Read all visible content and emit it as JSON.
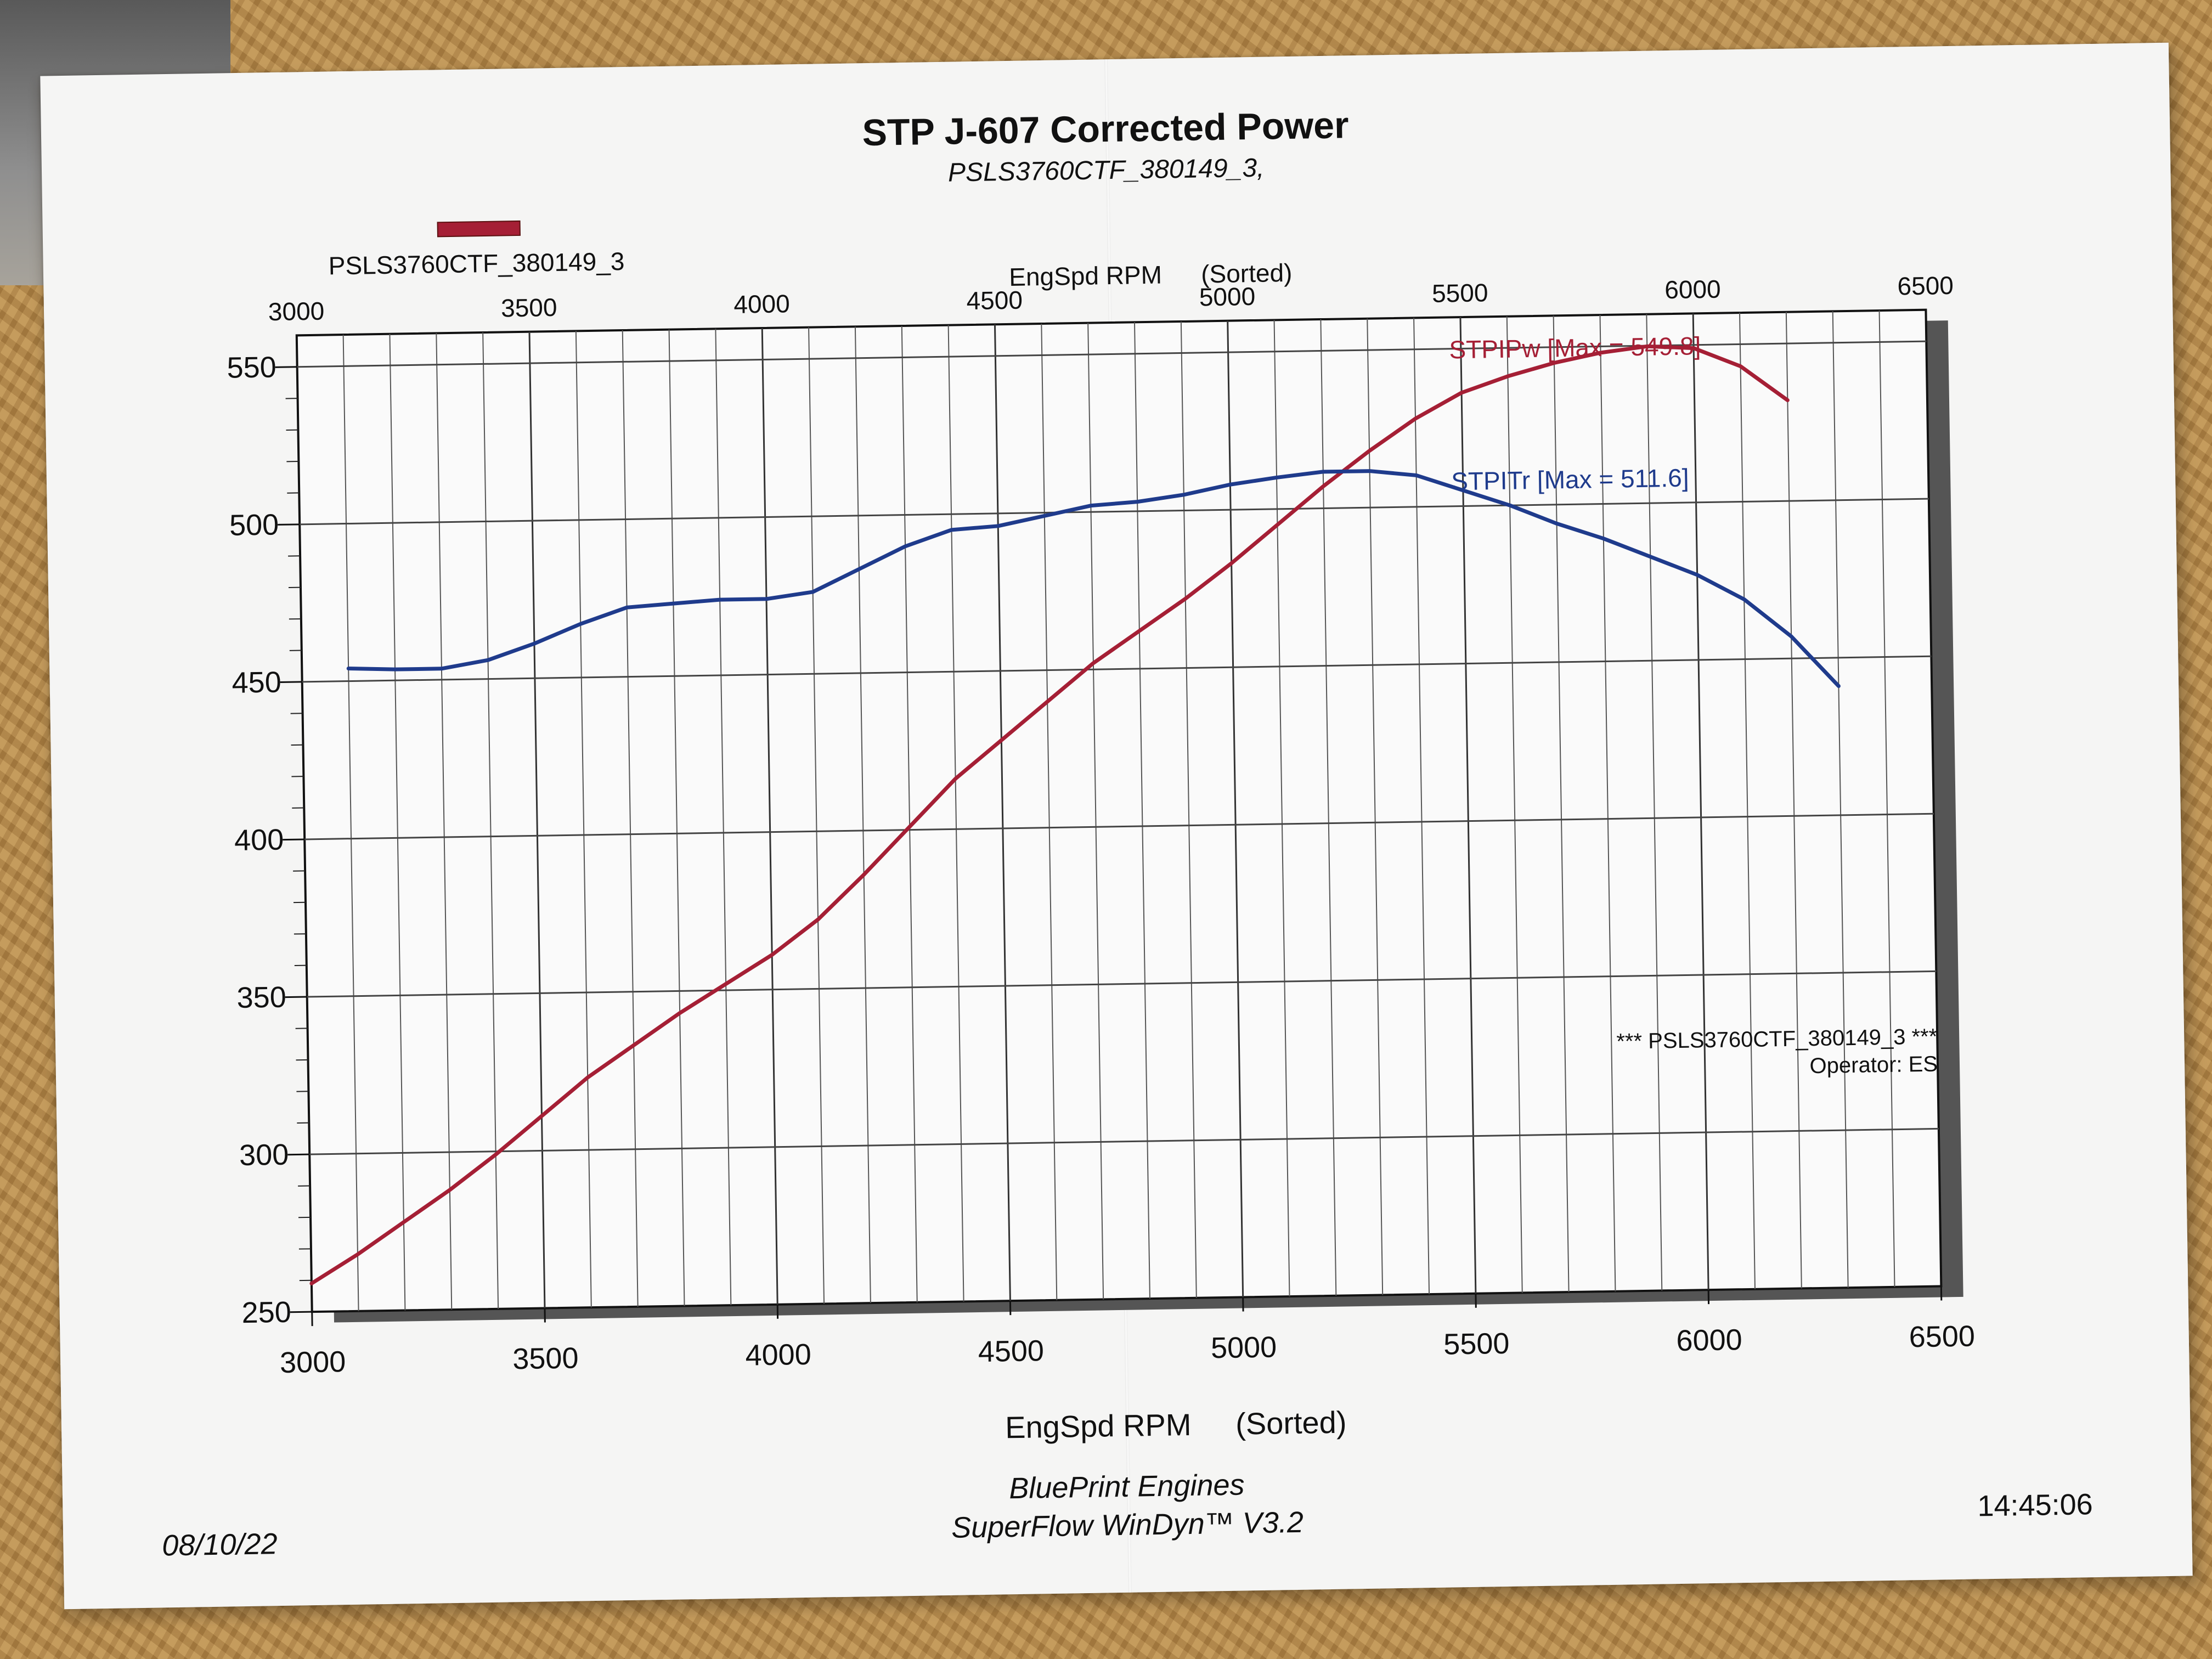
{
  "document": {
    "title": "STP J-607 Corrected Power",
    "subtitle": "PSLS3760CTF_380149_3,",
    "legend_label": "PSLS3760CTF_380149_3",
    "date": "08/10/22",
    "time": "14:45:06",
    "footer_line1": "BluePrint Engines",
    "footer_line2": "SuperFlow WinDyn™ V3.2",
    "note_line1": "*** PSLS3760CTF_380149_3 ***",
    "note_line2": "Operator: ES"
  },
  "chart_data": {
    "type": "line",
    "title": "STP J-607 Corrected Power",
    "subtitle": "PSLS3760CTF_380149_3,",
    "xlabel_main": "EngSpd RPM",
    "xlabel_suffix": "(Sorted)",
    "xlim": [
      3000,
      6500
    ],
    "ylim": [
      250,
      560
    ],
    "x_ticks": [
      3000,
      3500,
      4000,
      4500,
      5000,
      5500,
      6000,
      6500
    ],
    "y_ticks": [
      250,
      300,
      350,
      400,
      450,
      500,
      550
    ],
    "grid": true,
    "legend": "top-left",
    "series": [
      {
        "name": "STPIPw",
        "label": "STPIPw [Max = 549.8]",
        "color": "#a51f35",
        "x": [
          3000,
          3100,
          3200,
          3300,
          3400,
          3500,
          3600,
          3700,
          3800,
          3900,
          4000,
          4100,
          4200,
          4300,
          4400,
          4500,
          4600,
          4700,
          4800,
          4900,
          5000,
          5100,
          5200,
          5300,
          5400,
          5500,
          5600,
          5700,
          5800,
          5900,
          6000,
          6100,
          6200
        ],
        "values": [
          259,
          268,
          278,
          288,
          299,
          311,
          323,
          333,
          343,
          352,
          361,
          372,
          386,
          401,
          416,
          428,
          440,
          452,
          462,
          472,
          483,
          495,
          507,
          518,
          528,
          536,
          541,
          545,
          548,
          549.8,
          549,
          543,
          532
        ]
      },
      {
        "name": "STPITr",
        "label": "STPITr [Max = 511.6]",
        "color": "#1f3b8c",
        "x": [
          3100,
          3200,
          3300,
          3400,
          3500,
          3600,
          3700,
          3800,
          3900,
          4000,
          4100,
          4200,
          4300,
          4400,
          4500,
          4600,
          4700,
          4800,
          4900,
          5000,
          5100,
          5200,
          5300,
          5400,
          5500,
          5600,
          5700,
          5800,
          5900,
          6000,
          6100,
          6200,
          6300
        ],
        "values": [
          454,
          453.5,
          453.5,
          456,
          461,
          467,
          472,
          473,
          474,
          474,
          476,
          483,
          490,
          495,
          496,
          499,
          502,
          503,
          505,
          508,
          510,
          511.6,
          511.6,
          510,
          505,
          500,
          494,
          489,
          483,
          477,
          469,
          457,
          441
        ]
      }
    ]
  }
}
